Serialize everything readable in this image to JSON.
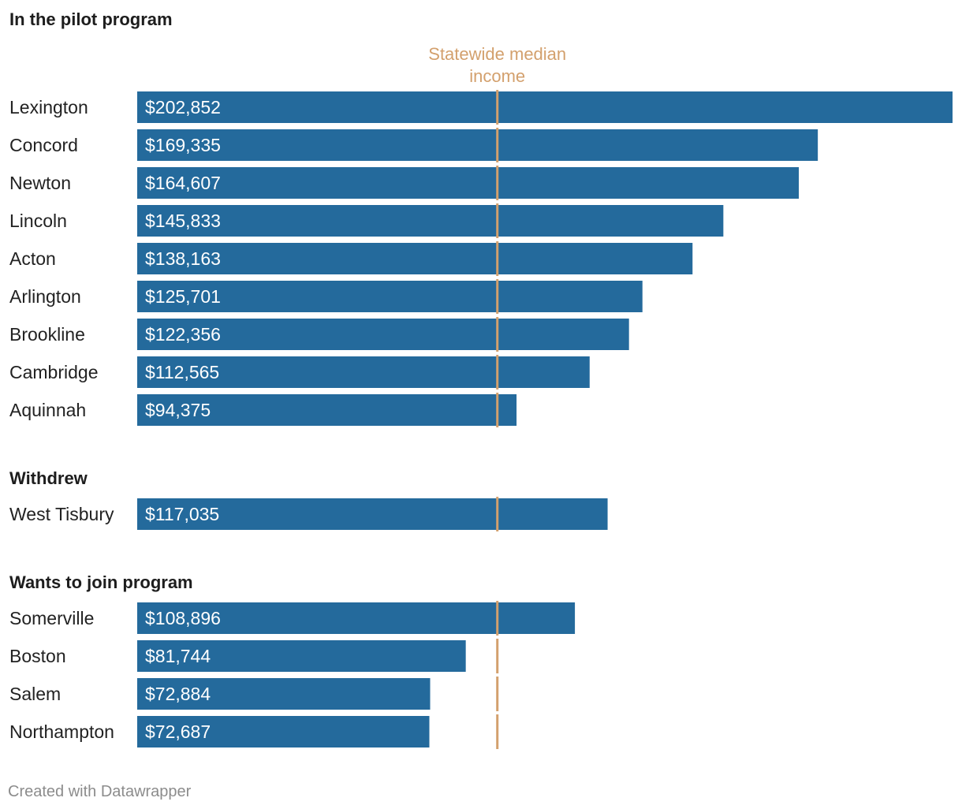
{
  "chart_data": {
    "type": "bar",
    "orientation": "horizontal",
    "unit": "USD",
    "reference_line": {
      "label": "Statewide median income",
      "label_lines": [
        "Statewide median",
        "income"
      ],
      "value": 89600,
      "color": "#d3a06d"
    },
    "xlim": [
      0,
      202852
    ],
    "bar_color": "#246a9c",
    "groups": [
      {
        "title": "In the pilot program",
        "rows": [
          {
            "category": "Lexington",
            "value": 202852,
            "label": "$202,852"
          },
          {
            "category": "Concord",
            "value": 169335,
            "label": "$169,335"
          },
          {
            "category": "Newton",
            "value": 164607,
            "label": "$164,607"
          },
          {
            "category": "Lincoln",
            "value": 145833,
            "label": "$145,833"
          },
          {
            "category": "Acton",
            "value": 138163,
            "label": "$138,163"
          },
          {
            "category": "Arlington",
            "value": 125701,
            "label": "$125,701"
          },
          {
            "category": "Brookline",
            "value": 122356,
            "label": "$122,356"
          },
          {
            "category": "Cambridge",
            "value": 112565,
            "label": "$112,565"
          },
          {
            "category": "Aquinnah",
            "value": 94375,
            "label": "$94,375"
          }
        ]
      },
      {
        "title": "Withdrew",
        "rows": [
          {
            "category": "West Tisbury",
            "value": 117035,
            "label": "$117,035"
          }
        ]
      },
      {
        "title": "Wants to join program",
        "rows": [
          {
            "category": "Somerville",
            "value": 108896,
            "label": "$108,896"
          },
          {
            "category": "Boston",
            "value": 81744,
            "label": "$81,744"
          },
          {
            "category": "Salem",
            "value": 72884,
            "label": "$72,884"
          },
          {
            "category": "Northampton",
            "value": 72687,
            "label": "$72,687"
          }
        ]
      }
    ]
  },
  "footer": {
    "credit": "Created with Datawrapper"
  }
}
